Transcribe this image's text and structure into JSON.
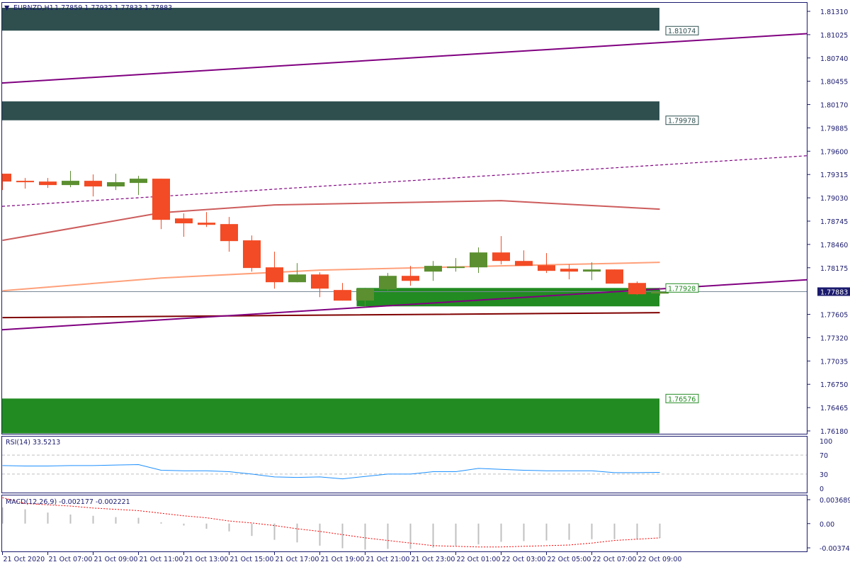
{
  "header": {
    "symbol": "EURNZD,H1",
    "ohlc": "1.77859 1.77932 1.77833 1.77883"
  },
  "colors": {
    "frame": "#1a1a6e",
    "bull": "#5b8f30",
    "bear": "#f34b25",
    "supply_zone": "#2f4f4f",
    "demand_zone": "#228b22",
    "channel": "#800080",
    "ma_fast": "#ffa07a",
    "ma_mid": "#cd5c5c",
    "ma_slow": "#800000",
    "rsi": "#1e90ff",
    "macd_hist": "#c0c0c0",
    "macd_signal": "#ff0000",
    "current_price_bg": "#1a1a6e"
  },
  "price_axis": {
    "ticks": [
      "1.81310",
      "1.81025",
      "1.80740",
      "1.80455",
      "1.80170",
      "1.79885",
      "1.79600",
      "1.79315",
      "1.79030",
      "1.78745",
      "1.78460",
      "1.78175",
      "1.77605",
      "1.77320",
      "1.77035",
      "1.76750",
      "1.76465",
      "1.76180"
    ],
    "current_price": "1.77883"
  },
  "time_axis": {
    "labels": [
      "21 Oct 2020",
      "21 Oct 07:00",
      "21 Oct 09:00",
      "21 Oct 11:00",
      "21 Oct 13:00",
      "21 Oct 15:00",
      "21 Oct 17:00",
      "21 Oct 19:00",
      "21 Oct 21:00",
      "21 Oct 23:00",
      "22 Oct 01:00",
      "22 Oct 03:00",
      "22 Oct 05:00",
      "22 Oct 07:00",
      "22 Oct 09:00"
    ]
  },
  "chart_data": {
    "type": "candlestick",
    "timeframe": "H1",
    "ylim": [
      1.7618,
      1.8131
    ],
    "candles_ohlc": [
      [
        1.79325,
        1.79325,
        1.79125,
        1.79229
      ],
      [
        1.79238,
        1.79273,
        1.79143,
        1.79221
      ],
      [
        1.79229,
        1.79273,
        1.79151,
        1.79186
      ],
      [
        1.79186,
        1.79359,
        1.7916,
        1.79238
      ],
      [
        1.79238,
        1.79316,
        1.79047,
        1.79169
      ],
      [
        1.79169,
        1.79325,
        1.79125,
        1.79221
      ],
      [
        1.79212,
        1.79299,
        1.79065,
        1.79264
      ],
      [
        1.79264,
        1.79264,
        1.78648,
        1.78761
      ],
      [
        1.78778,
        1.78839,
        1.78553,
        1.78718
      ],
      [
        1.78726,
        1.78856,
        1.78674,
        1.787
      ],
      [
        1.78709,
        1.78796,
        1.78371,
        1.78501
      ],
      [
        1.7851,
        1.7857,
        1.78128,
        1.78172
      ],
      [
        1.7818,
        1.78371,
        1.7792,
        1.77998
      ],
      [
        1.77998,
        1.78232,
        1.77998,
        1.78093
      ],
      [
        1.78093,
        1.78119,
        1.77816,
        1.7792
      ],
      [
        1.77903,
        1.77989,
        1.77773,
        1.77773
      ],
      [
        1.77773,
        1.77929,
        1.77695,
        1.7792
      ],
      [
        1.77911,
        1.78111,
        1.77894,
        1.78076
      ],
      [
        1.78076,
        1.78198,
        1.77955,
        1.78015
      ],
      [
        1.78128,
        1.78258,
        1.78015,
        1.78198
      ],
      [
        1.78172,
        1.78293,
        1.78128,
        1.78189
      ],
      [
        1.7818,
        1.78423,
        1.78111,
        1.78362
      ],
      [
        1.78362,
        1.78562,
        1.78215,
        1.78258
      ],
      [
        1.78258,
        1.78388,
        1.78198,
        1.78198
      ],
      [
        1.78206,
        1.78354,
        1.78111,
        1.78137
      ],
      [
        1.78163,
        1.78215,
        1.78033,
        1.78128
      ],
      [
        1.78128,
        1.78241,
        1.78024,
        1.78154
      ],
      [
        1.78154,
        1.78154,
        1.77981,
        1.77981
      ],
      [
        1.77989,
        1.78007,
        1.77842,
        1.77851
      ],
      [
        1.77859,
        1.77932,
        1.77833,
        1.77883
      ]
    ],
    "zones": [
      {
        "kind": "supply",
        "top": 1.81353,
        "bottom": 1.81074,
        "label": "1.81074",
        "from_candle": 0
      },
      {
        "kind": "supply",
        "top": 1.80209,
        "bottom": 1.79978,
        "label": "1.79978",
        "from_candle": 0
      },
      {
        "kind": "demand",
        "top": 1.77928,
        "bottom": 1.77703,
        "label": "1.77928",
        "from_candle": 16
      },
      {
        "kind": "demand",
        "top": 1.76576,
        "bottom": 1.7615,
        "label": "1.76576",
        "from_candle": 0
      }
    ],
    "channel_lines": [
      {
        "style": "solid",
        "start": 1.80434,
        "end": 1.81059
      },
      {
        "style": "dashed",
        "start": 1.78926,
        "end": 1.79567
      },
      {
        "style": "solid",
        "start": 1.77417,
        "end": 1.7805
      }
    ],
    "moving_averages": [
      {
        "color_key": "ma_mid",
        "points": [
          [
            0,
            1.7851
          ],
          [
            7,
            1.78848
          ],
          [
            12,
            1.78943
          ],
          [
            22,
            1.78995
          ],
          [
            29,
            1.78891
          ]
        ]
      },
      {
        "color_key": "ma_fast",
        "points": [
          [
            0,
            1.77894
          ],
          [
            7,
            1.7805
          ],
          [
            14,
            1.78146
          ],
          [
            22,
            1.78198
          ],
          [
            29,
            1.78241
          ]
        ]
      },
      {
        "color_key": "ma_slow",
        "points": [
          [
            0,
            1.77565
          ],
          [
            12,
            1.77591
          ],
          [
            29,
            1.77626
          ]
        ]
      }
    ],
    "rsi": {
      "label": "RSI(14) 33.5213",
      "levels": [
        70,
        30
      ],
      "ticks": [
        "100",
        "70",
        "30",
        "0"
      ],
      "values": [
        48,
        47,
        47,
        48,
        48,
        49,
        50,
        38,
        37,
        37,
        35,
        30,
        24,
        23,
        24,
        20,
        25,
        30,
        30,
        35,
        35,
        42,
        40,
        38,
        37,
        37,
        37,
        33,
        33,
        33.5
      ]
    },
    "macd": {
      "label": "MACD(12,26,9) -0.002177 -0.002221",
      "ticks": [
        "0.003689",
        "0.00",
        "-0.00374"
      ],
      "ylim": [
        -0.00374,
        0.003689
      ],
      "histogram": [
        0.0025,
        0.0022,
        0.0017,
        0.0014,
        0.0012,
        0.001,
        0.0009,
        0.0002,
        -0.0003,
        -0.0008,
        -0.0012,
        -0.0019,
        -0.0025,
        -0.0029,
        -0.0034,
        -0.0038,
        -0.004,
        -0.0039,
        -0.0039,
        -0.0037,
        -0.0034,
        -0.0032,
        -0.0028,
        -0.0027,
        -0.0026,
        -0.0025,
        -0.0024,
        -0.0024,
        -0.0024,
        -0.0022
      ],
      "signal": [
        0.004,
        0.0031,
        0.0029,
        0.0027,
        0.0024,
        0.0022,
        0.002,
        0.0016,
        0.0012,
        0.0009,
        0.0004,
        0.0001,
        -0.0003,
        -0.0008,
        -0.0012,
        -0.0017,
        -0.0022,
        -0.0026,
        -0.003,
        -0.0034,
        -0.0035,
        -0.0036,
        -0.0036,
        -0.0035,
        -0.0034,
        -0.0033,
        -0.003,
        -0.0026,
        -0.0024,
        -0.0022
      ]
    }
  }
}
